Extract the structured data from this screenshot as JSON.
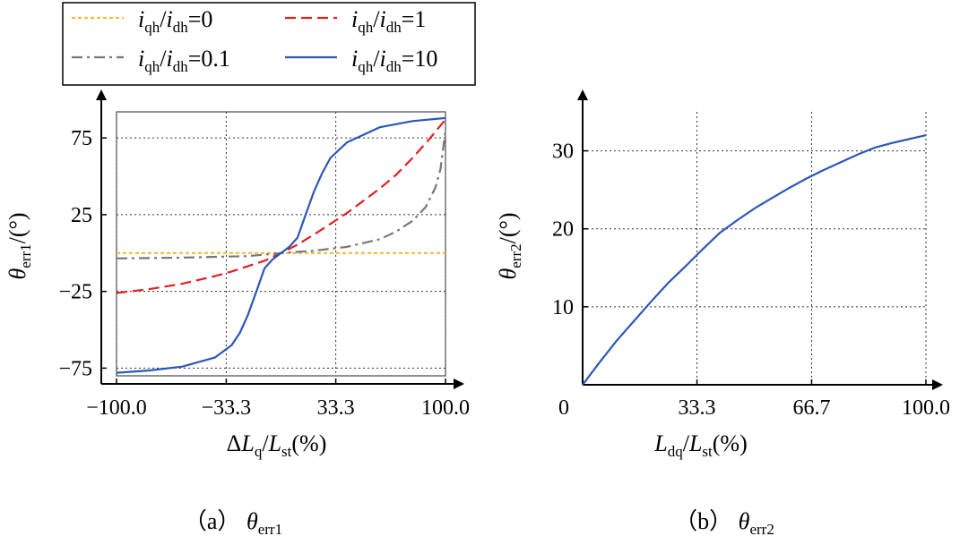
{
  "chart_data": [
    {
      "type": "line",
      "panel_label": "（a）",
      "caption_symbol": "θ",
      "caption_sub": "err1",
      "xlabel": {
        "pre": "Δ",
        "main": "L",
        "sub": "q",
        "slash": "/",
        "main2": "L",
        "sub2": "st",
        "unit": "(%)"
      },
      "ylabel": {
        "main": "θ",
        "sub": "err1",
        "unit": "/(°)"
      },
      "xlim": [
        -100,
        100
      ],
      "ylim": [
        -80,
        92
      ],
      "xticks": [
        -100,
        -33.3,
        33.3,
        100
      ],
      "xtick_labels": [
        "−100.0",
        "−33.3",
        "33.3",
        "100.0"
      ],
      "yticks": [
        -75,
        -25,
        25,
        75
      ],
      "ytick_labels": [
        "−75",
        "−25",
        "25",
        "75"
      ],
      "grid": true,
      "legend": {
        "placement": "top",
        "entries": [
          {
            "var1": "i",
            "sub1": "qh",
            "var2": "i",
            "sub2": "dh",
            "value": "=0"
          },
          {
            "var1": "i",
            "sub1": "qh",
            "var2": "i",
            "sub2": "dh",
            "value": "=1"
          },
          {
            "var1": "i",
            "sub1": "qh",
            "var2": "i",
            "sub2": "dh",
            "value": "=0.1"
          },
          {
            "var1": "i",
            "sub1": "qh",
            "var2": "i",
            "sub2": "dh",
            "value": "=10"
          }
        ]
      },
      "series": [
        {
          "name": "iqh/idh=0",
          "color": "#f2bb3c",
          "style": "dotted",
          "x": [
            -100,
            100
          ],
          "y": [
            0,
            0
          ]
        },
        {
          "name": "iqh/idh=1",
          "color": "#e02020",
          "style": "dashed",
          "x": [
            -100,
            -80,
            -60,
            -40,
            -30,
            -20,
            -10,
            0,
            10,
            20,
            30,
            40,
            50,
            60,
            70,
            80,
            90,
            100
          ],
          "y": [
            -26,
            -23.5,
            -20,
            -15,
            -12,
            -8.5,
            -5,
            0,
            5.5,
            12,
            19,
            26,
            34,
            42,
            51,
            62,
            74,
            87
          ]
        },
        {
          "name": "iqh/idh=0.1",
          "color": "#777777",
          "style": "dashdot",
          "x": [
            -100,
            -60,
            -20,
            0,
            20,
            40,
            60,
            70,
            80,
            88,
            94,
            97,
            100
          ],
          "y": [
            -3.5,
            -3,
            -2,
            0,
            1.5,
            4,
            9,
            14,
            21,
            30,
            43,
            55,
            80
          ]
        },
        {
          "name": "iqh/idh=10",
          "color": "#2b57b8",
          "style": "solid",
          "x": [
            -100,
            -80,
            -60,
            -40,
            -30,
            -25,
            -20,
            -15,
            -10,
            -5,
            0,
            5,
            10,
            15,
            20,
            25,
            30,
            40,
            60,
            80,
            100
          ],
          "y": [
            -78,
            -76.5,
            -74,
            -68,
            -60,
            -52,
            -40,
            -25,
            -10,
            -4,
            0,
            4,
            10,
            25,
            40,
            52,
            62,
            72,
            82,
            86,
            88
          ]
        }
      ]
    },
    {
      "type": "line",
      "panel_label": "（b）",
      "caption_symbol": "θ",
      "caption_sub": "err2",
      "xlabel": {
        "pre": "",
        "main": "L",
        "sub": "dq",
        "slash": "/",
        "main2": "L",
        "sub2": "st",
        "unit": "(%)"
      },
      "ylabel": {
        "main": "θ",
        "sub": "err2",
        "unit": "/(°)"
      },
      "xlim": [
        0,
        100
      ],
      "ylim": [
        0,
        35
      ],
      "xticks": [
        33.3,
        66.7,
        100
      ],
      "xtick_labels": [
        "33.3",
        "66.7",
        "100.0"
      ],
      "yticks": [
        10,
        20,
        30
      ],
      "ytick_labels": [
        "10",
        "20",
        "30"
      ],
      "origin_label": "0",
      "grid": true,
      "series": [
        {
          "name": "θerr2",
          "color": "#2b57b8",
          "style": "solid",
          "x": [
            0,
            5,
            10,
            15,
            20,
            25,
            30,
            35,
            40,
            45,
            50,
            55,
            60,
            65,
            70,
            75,
            80,
            85,
            90,
            95,
            100
          ],
          "y": [
            0,
            2.9,
            5.7,
            8.2,
            10.7,
            13.1,
            15.2,
            17.4,
            19.5,
            21.1,
            22.6,
            23.9,
            25.2,
            26.4,
            27.5,
            28.5,
            29.5,
            30.4,
            31.0,
            31.5,
            32.0
          ]
        }
      ]
    }
  ]
}
